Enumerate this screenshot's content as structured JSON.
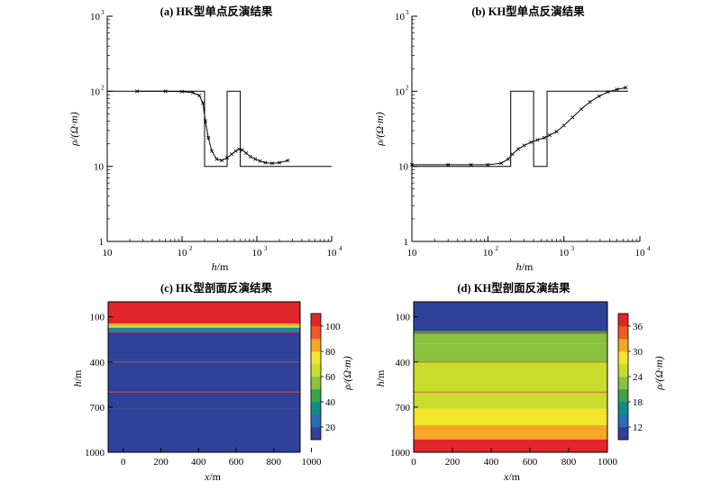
{
  "chart_data": [
    {
      "type": "line",
      "title": "(a) HK型单点反演结果",
      "xlabel_symbol": "h",
      "xlabel_unit": "/m",
      "ylabel": "ρ/(Ω·m)",
      "x_scale": "log",
      "y_scale": "log",
      "xlim": [
        10,
        10000
      ],
      "ylim": [
        1,
        1000
      ],
      "x_ticks": [
        {
          "base": "10",
          "exp": ""
        },
        {
          "base": "10",
          "exp": "2"
        },
        {
          "base": "10",
          "exp": "3"
        },
        {
          "base": "10",
          "exp": "4"
        }
      ],
      "y_ticks": [
        {
          "base": "1",
          "exp": ""
        },
        {
          "base": "10",
          "exp": ""
        },
        {
          "base": "10",
          "exp": "2"
        },
        {
          "base": "10",
          "exp": "3"
        }
      ],
      "grid": false,
      "series": [
        {
          "style": "step",
          "x": [
            10,
            200,
            200,
            400,
            400,
            600,
            600,
            10000
          ],
          "y": [
            100,
            100,
            10,
            10,
            100,
            100,
            10,
            10
          ]
        },
        {
          "style": "line-cross",
          "x": [
            25,
            60,
            100,
            140,
            170,
            190,
            205,
            225,
            250,
            290,
            340,
            400,
            460,
            520,
            580,
            640,
            720,
            820,
            950,
            1100,
            1300,
            1600,
            2000,
            2600
          ],
          "y": [
            100,
            100,
            99,
            96,
            88,
            70,
            40,
            24,
            16,
            12.5,
            12,
            13,
            14.5,
            16,
            17,
            16.5,
            15,
            13.5,
            12.5,
            11.8,
            11.2,
            11,
            11.2,
            12
          ]
        }
      ]
    },
    {
      "type": "line",
      "title": "(b) KH型单点反演结果",
      "xlabel_symbol": "h",
      "xlabel_unit": "/m",
      "ylabel": "ρ/(Ω·m)",
      "x_scale": "log",
      "y_scale": "log",
      "xlim": [
        10,
        10000
      ],
      "ylim": [
        1,
        1000
      ],
      "x_ticks": [
        {
          "base": "10",
          "exp": ""
        },
        {
          "base": "10",
          "exp": "2"
        },
        {
          "base": "10",
          "exp": "3"
        },
        {
          "base": "10",
          "exp": "4"
        }
      ],
      "y_ticks": [
        {
          "base": "1",
          "exp": ""
        },
        {
          "base": "10",
          "exp": ""
        },
        {
          "base": "10",
          "exp": "2"
        },
        {
          "base": "10",
          "exp": "3"
        }
      ],
      "grid": false,
      "series": [
        {
          "style": "step",
          "x": [
            10,
            200,
            200,
            400,
            400,
            600,
            600,
            7000
          ],
          "y": [
            10,
            10,
            100,
            100,
            10,
            10,
            100,
            100
          ]
        },
        {
          "style": "line-cross",
          "x": [
            10,
            30,
            60,
            100,
            150,
            185,
            210,
            250,
            300,
            370,
            450,
            550,
            650,
            800,
            1000,
            1300,
            1700,
            2200,
            2900,
            3800,
            5000,
            6500
          ],
          "y": [
            10.5,
            10.5,
            10.5,
            10.5,
            11,
            12.5,
            14.5,
            17,
            19,
            21,
            22.5,
            24,
            26,
            29,
            35,
            45,
            58,
            72,
            86,
            98,
            106,
            112
          ]
        }
      ]
    },
    {
      "type": "heatmap",
      "title": "(c) HK型剖面反演结果",
      "xlabel_symbol": "x",
      "xlabel_unit": "/m",
      "ylabel_symbol": "h",
      "ylabel_unit": "/m",
      "xlim": [
        -80,
        940
      ],
      "ylim": [
        1000,
        0
      ],
      "x_ticks": [
        "0",
        "200",
        "400",
        "600",
        "800",
        "1000"
      ],
      "y_ticks": [
        "100",
        "400",
        "700",
        "1000"
      ],
      "colorbar_label": "ρ/(Ω·m)",
      "colorbar_ticks": [
        "20",
        "40",
        "60",
        "80",
        "100"
      ],
      "colorbar_range": [
        10,
        110
      ],
      "layers": [
        {
          "top": 0,
          "bottom": 145,
          "value": 104
        },
        {
          "top": 145,
          "bottom": 158,
          "value": 88
        },
        {
          "top": 158,
          "bottom": 172,
          "value": 62
        },
        {
          "top": 172,
          "bottom": 188,
          "value": 38
        },
        {
          "top": 188,
          "bottom": 200,
          "value": 22
        },
        {
          "top": 200,
          "bottom": 380,
          "value": 12
        },
        {
          "top": 380,
          "bottom": 600,
          "value": 18
        },
        {
          "top": 600,
          "bottom": 710,
          "value": 16
        },
        {
          "top": 710,
          "bottom": 1000,
          "value": 11
        }
      ],
      "boundaries": [
        200,
        400,
        600
      ]
    },
    {
      "type": "heatmap",
      "title": "(d) KH型剖面反演结果",
      "xlabel_symbol": "x",
      "xlabel_unit": "/m",
      "ylabel_symbol": "h",
      "ylabel_unit": "/m",
      "xlim": [
        0,
        1000
      ],
      "ylim": [
        1000,
        0
      ],
      "x_ticks": [
        "0",
        "200",
        "400",
        "600",
        "800",
        "1000"
      ],
      "y_ticks": [
        "100",
        "400",
        "700",
        "1000"
      ],
      "colorbar_label": "ρ/(Ω·m)",
      "colorbar_ticks": [
        "12",
        "18",
        "24",
        "30",
        "36"
      ],
      "colorbar_range": [
        9,
        39
      ],
      "layers": [
        {
          "top": 0,
          "bottom": 195,
          "value": 10.5
        },
        {
          "top": 195,
          "bottom": 215,
          "value": 19
        },
        {
          "top": 215,
          "bottom": 280,
          "value": 21
        },
        {
          "top": 280,
          "bottom": 400,
          "value": 23
        },
        {
          "top": 400,
          "bottom": 600,
          "value": 24
        },
        {
          "top": 600,
          "bottom": 710,
          "value": 26
        },
        {
          "top": 710,
          "bottom": 820,
          "value": 29
        },
        {
          "top": 820,
          "bottom": 915,
          "value": 32
        },
        {
          "top": 915,
          "bottom": 1000,
          "value": 36
        }
      ],
      "boundaries": [
        200,
        400,
        600
      ]
    }
  ],
  "colors": {
    "boundary_line": "#d9553f",
    "layer_scale": [
      "#2f4199",
      "#2a6db2",
      "#138a8a",
      "#3aa34a",
      "#88c23f",
      "#c9dc2c",
      "#f2e52c",
      "#f6a624",
      "#ef5a25",
      "#e0262b"
    ]
  }
}
